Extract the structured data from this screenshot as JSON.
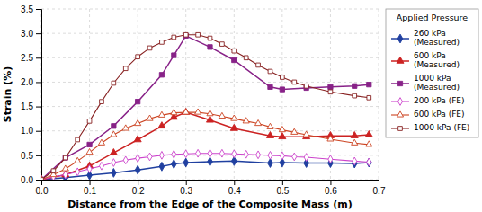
{
  "chart_data": {
    "type": "line",
    "title": "Applied Pressure",
    "xlabel": "Distance from the Edge of the Composite Mass (m)",
    "ylabel": "Strain (%)",
    "xlim": [
      0.0,
      0.7
    ],
    "ylim": [
      0.0,
      3.5
    ],
    "xticks": [
      {
        "value": 0.0,
        "label": "0.0"
      },
      0.1,
      0.2,
      0.3,
      0.4,
      0.5,
      0.6,
      0.7
    ],
    "yticks": [
      {
        "value": 0.0,
        "label": "0.0"
      },
      0.5,
      {
        "value": 1.0,
        "label": "1.0"
      },
      1.5,
      {
        "value": 2.0,
        "label": "2.0"
      },
      2.5,
      {
        "value": 3.0,
        "label": "3.0"
      },
      3.5
    ],
    "grid": true,
    "legend": "right",
    "series": [
      {
        "name": "260 kPa\n(Measured)",
        "color": "#2040A0",
        "marker": "diamond",
        "line_style": "solid",
        "x": [
          0.0,
          0.05,
          0.1,
          0.15,
          0.2,
          0.25,
          0.275,
          0.3,
          0.35,
          0.4,
          0.475,
          0.5,
          0.55,
          0.6,
          0.65,
          0.68
        ],
        "values": [
          0.0,
          0.04,
          0.09,
          0.14,
          0.2,
          0.27,
          0.32,
          0.35,
          0.37,
          0.38,
          0.34,
          0.35,
          0.34,
          0.34,
          0.33,
          0.35
        ]
      },
      {
        "name": "600 kPa\n(Measured)",
        "color": "#CC2222",
        "marker": "triangle",
        "line_style": "solid",
        "x": [
          0.0,
          0.05,
          0.1,
          0.15,
          0.2,
          0.25,
          0.275,
          0.3,
          0.35,
          0.4,
          0.475,
          0.5,
          0.55,
          0.6,
          0.65,
          0.68
        ],
        "values": [
          0.0,
          0.1,
          0.28,
          0.55,
          0.82,
          1.1,
          1.28,
          1.38,
          1.22,
          1.05,
          0.9,
          0.88,
          0.88,
          0.9,
          0.9,
          0.92
        ]
      },
      {
        "name": "1000 kPa\n(Measured)",
        "color": "#882288",
        "marker": "square",
        "line_style": "solid",
        "x": [
          0.0,
          0.05,
          0.1,
          0.15,
          0.2,
          0.25,
          0.275,
          0.3,
          0.35,
          0.4,
          0.475,
          0.5,
          0.55,
          0.6,
          0.65,
          0.68
        ],
        "values": [
          0.0,
          0.45,
          0.72,
          1.1,
          1.6,
          2.15,
          2.55,
          2.95,
          2.72,
          2.45,
          1.9,
          1.85,
          1.88,
          1.9,
          1.92,
          1.95
        ]
      },
      {
        "name": "200 kPa (FE)",
        "color": "#CC44CC",
        "marker": "diamond-open",
        "line_style": "solid",
        "x": [
          0.0,
          0.025,
          0.05,
          0.075,
          0.1,
          0.125,
          0.15,
          0.175,
          0.2,
          0.225,
          0.25,
          0.275,
          0.3,
          0.325,
          0.35,
          0.375,
          0.4,
          0.425,
          0.45,
          0.475,
          0.5,
          0.525,
          0.55,
          0.6,
          0.65,
          0.68
        ],
        "values": [
          0.0,
          0.06,
          0.1,
          0.16,
          0.22,
          0.28,
          0.35,
          0.4,
          0.44,
          0.47,
          0.5,
          0.52,
          0.53,
          0.54,
          0.54,
          0.54,
          0.53,
          0.52,
          0.51,
          0.5,
          0.49,
          0.47,
          0.46,
          0.42,
          0.38,
          0.36
        ]
      },
      {
        "name": "600 kPa (FE)",
        "color": "#CC4422",
        "marker": "triangle-open",
        "line_style": "solid",
        "x": [
          0.0,
          0.025,
          0.05,
          0.075,
          0.1,
          0.125,
          0.15,
          0.175,
          0.2,
          0.225,
          0.25,
          0.275,
          0.3,
          0.325,
          0.35,
          0.375,
          0.4,
          0.425,
          0.45,
          0.475,
          0.5,
          0.525,
          0.55,
          0.6,
          0.65,
          0.68
        ],
        "values": [
          0.0,
          0.1,
          0.22,
          0.38,
          0.56,
          0.75,
          0.92,
          1.05,
          1.15,
          1.25,
          1.32,
          1.37,
          1.38,
          1.38,
          1.35,
          1.3,
          1.25,
          1.2,
          1.15,
          1.08,
          1.02,
          0.97,
          0.92,
          0.83,
          0.75,
          0.72
        ]
      },
      {
        "name": "1000 kPa (FE)",
        "color": "#882222",
        "marker": "square-open",
        "line_style": "solid",
        "x": [
          0.0,
          0.025,
          0.05,
          0.075,
          0.1,
          0.125,
          0.15,
          0.175,
          0.2,
          0.225,
          0.25,
          0.275,
          0.3,
          0.325,
          0.35,
          0.375,
          0.4,
          0.425,
          0.45,
          0.475,
          0.5,
          0.525,
          0.55,
          0.6,
          0.65,
          0.68
        ],
        "values": [
          0.0,
          0.18,
          0.45,
          0.82,
          1.2,
          1.6,
          1.98,
          2.28,
          2.52,
          2.7,
          2.82,
          2.92,
          2.97,
          2.97,
          2.9,
          2.78,
          2.64,
          2.5,
          2.35,
          2.22,
          2.1,
          2.0,
          1.92,
          1.8,
          1.72,
          1.68
        ]
      }
    ]
  }
}
